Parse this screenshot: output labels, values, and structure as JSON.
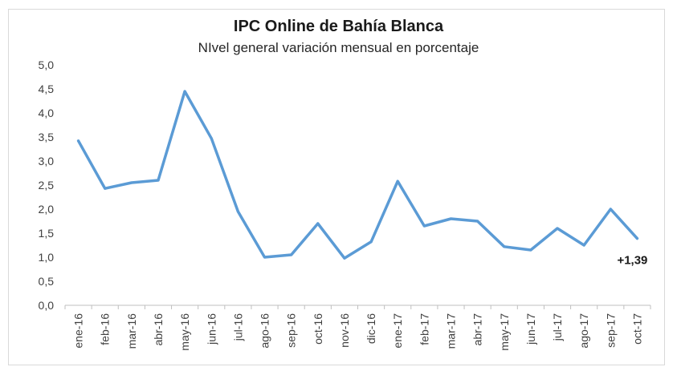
{
  "chart_data": {
    "type": "line",
    "title": "IPC Online de Bahía Blanca",
    "subtitle": "NIvel general variación mensual en porcentaje",
    "xlabel": "",
    "ylabel": "",
    "categories": [
      "ene-16",
      "feb-16",
      "mar-16",
      "abr-16",
      "may-16",
      "jun-16",
      "jul-16",
      "ago-16",
      "sep-16",
      "oct-16",
      "nov-16",
      "dic-16",
      "ene-17",
      "feb-17",
      "mar-17",
      "abr-17",
      "may-17",
      "jun-17",
      "jul-17",
      "ago-17",
      "sep-17",
      "oct-17"
    ],
    "series": [
      {
        "values": [
          3.42,
          2.43,
          2.55,
          2.6,
          4.45,
          3.47,
          1.95,
          1.0,
          1.05,
          1.7,
          0.98,
          1.32,
          2.58,
          1.65,
          1.8,
          1.75,
          1.22,
          1.15,
          1.6,
          1.25,
          2.0,
          1.39
        ]
      }
    ],
    "ylim": [
      0,
      5
    ],
    "yticks": [
      "0,0",
      "0,5",
      "1,0",
      "1,5",
      "2,0",
      "2,5",
      "3,0",
      "3,5",
      "4,0",
      "4,5",
      "5,0"
    ],
    "grid": false,
    "line_color": "#5b9bd5",
    "annotation": {
      "text": "+1,39",
      "category": "oct-17"
    }
  }
}
